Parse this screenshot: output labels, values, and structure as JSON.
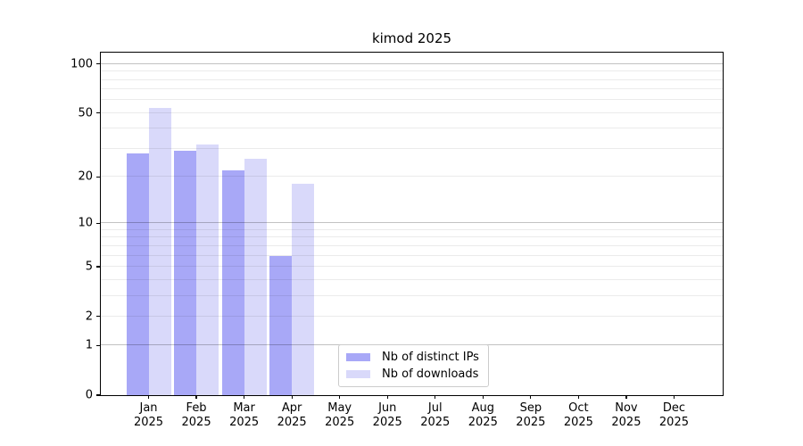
{
  "title": "kimod 2025",
  "chart_data": {
    "type": "bar",
    "title": "kimod 2025",
    "months": [
      "Jan",
      "Feb",
      "Mar",
      "Apr",
      "May",
      "Jun",
      "Jul",
      "Aug",
      "Sep",
      "Oct",
      "Nov",
      "Dec"
    ],
    "year": "2025",
    "series": [
      {
        "name": "Nb of distinct IPs",
        "color": "#a8a8f7",
        "values": [
          28,
          29,
          22,
          6,
          0,
          0,
          0,
          0,
          0,
          0,
          0,
          0
        ]
      },
      {
        "name": "Nb of downloads",
        "color": "#d9d9fa",
        "values": [
          54,
          32,
          26,
          18,
          0,
          0,
          0,
          0,
          0,
          0,
          0,
          0
        ]
      }
    ],
    "yscale": "log1p",
    "ylim": [
      0,
      116
    ],
    "ytick_values": [
      0,
      1,
      2,
      5,
      10,
      20,
      50,
      100
    ],
    "ytick_labels": [
      "0",
      "1",
      "2",
      "5",
      "10",
      "20",
      "50",
      "100"
    ],
    "major_gridlines": [
      1,
      10,
      100
    ],
    "minor_gridlines": [
      2,
      3,
      4,
      5,
      6,
      7,
      8,
      9,
      20,
      30,
      40,
      50,
      60,
      70,
      80,
      90
    ],
    "grid": true,
    "legend_position": "lower center inside",
    "xlabel": "",
    "ylabel": ""
  },
  "colors": {
    "bar_distinct_ips": "#a8a8f7",
    "bar_downloads": "#d9d9fa",
    "grid_minor": "rgba(0,0,0,0.08)",
    "grid_major": "rgba(0,0,0,0.24)",
    "spine": "#000000",
    "legend_border": "#cccccc",
    "background": "#ffffff"
  }
}
